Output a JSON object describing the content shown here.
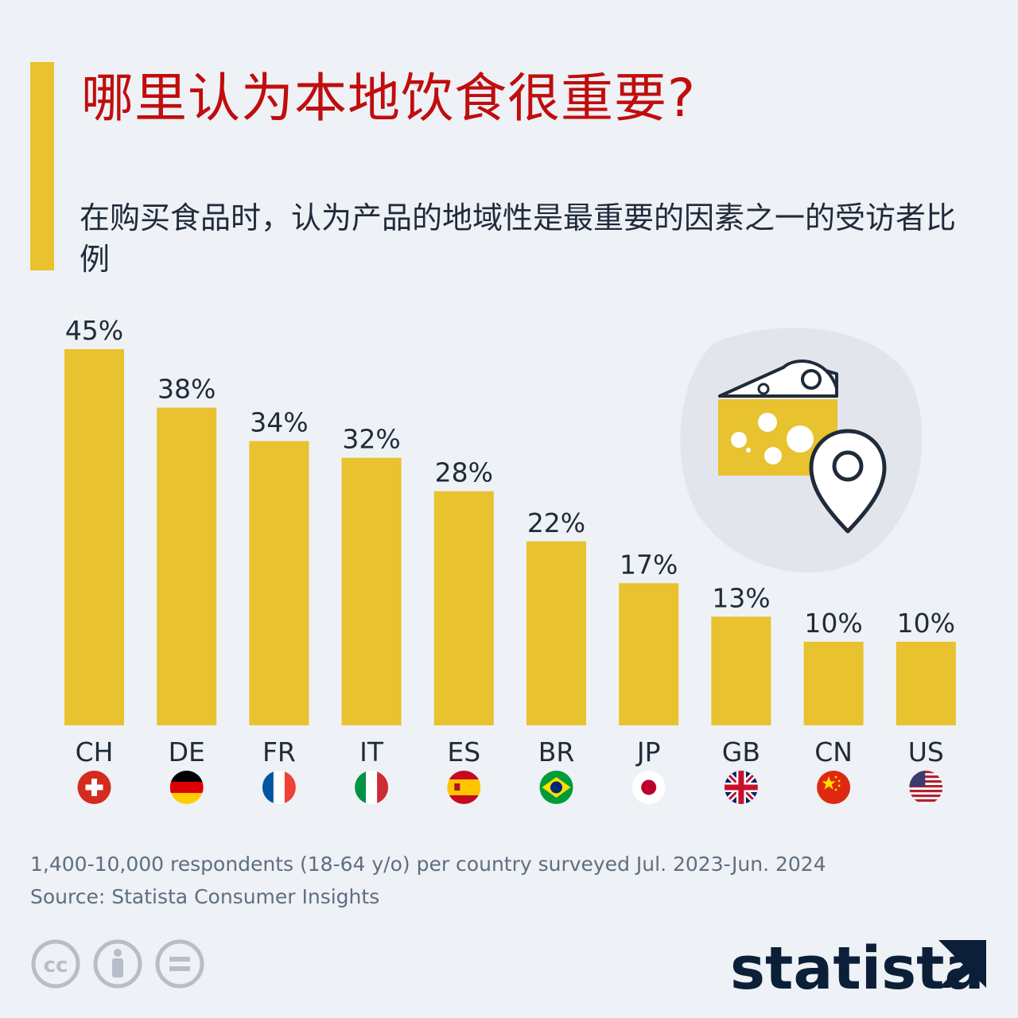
{
  "title": "哪里认为本地饮食很重要?",
  "subtitle": "在购买食品时，认为产品的地域性是最重要的因素之一的受访者比例",
  "footnote": {
    "sample": "1,400-10,000 respondents (18-64 y/o) per country surveyed Jul. 2023-Jun. 2024",
    "source": "Source: Statista Consumer Insights"
  },
  "brand": "statista",
  "colors": {
    "bar": "#e8c22f",
    "title": "#c00d0d",
    "text": "#1f2b3a",
    "background": "#eef1f5"
  },
  "chart_data": {
    "type": "bar",
    "categories": [
      "CH",
      "DE",
      "FR",
      "IT",
      "ES",
      "BR",
      "JP",
      "GB",
      "CN",
      "US"
    ],
    "values": [
      45,
      38,
      34,
      32,
      28,
      22,
      17,
      13,
      10,
      10
    ],
    "value_labels": [
      "45%",
      "38%",
      "34%",
      "32%",
      "28%",
      "22%",
      "17%",
      "13%",
      "10%",
      "10%"
    ],
    "flags": [
      "switzerland-flag-icon",
      "germany-flag-icon",
      "france-flag-icon",
      "italy-flag-icon",
      "spain-flag-icon",
      "brazil-flag-icon",
      "japan-flag-icon",
      "uk-flag-icon",
      "china-flag-icon",
      "usa-flag-icon"
    ],
    "ylim": [
      0,
      45
    ],
    "grid": false,
    "legend": "none"
  },
  "icons": {
    "illustration": [
      "cheese-icon",
      "location-pin-icon"
    ],
    "license": [
      "creative-commons-icon",
      "attribution-icon",
      "no-derivatives-icon"
    ]
  }
}
